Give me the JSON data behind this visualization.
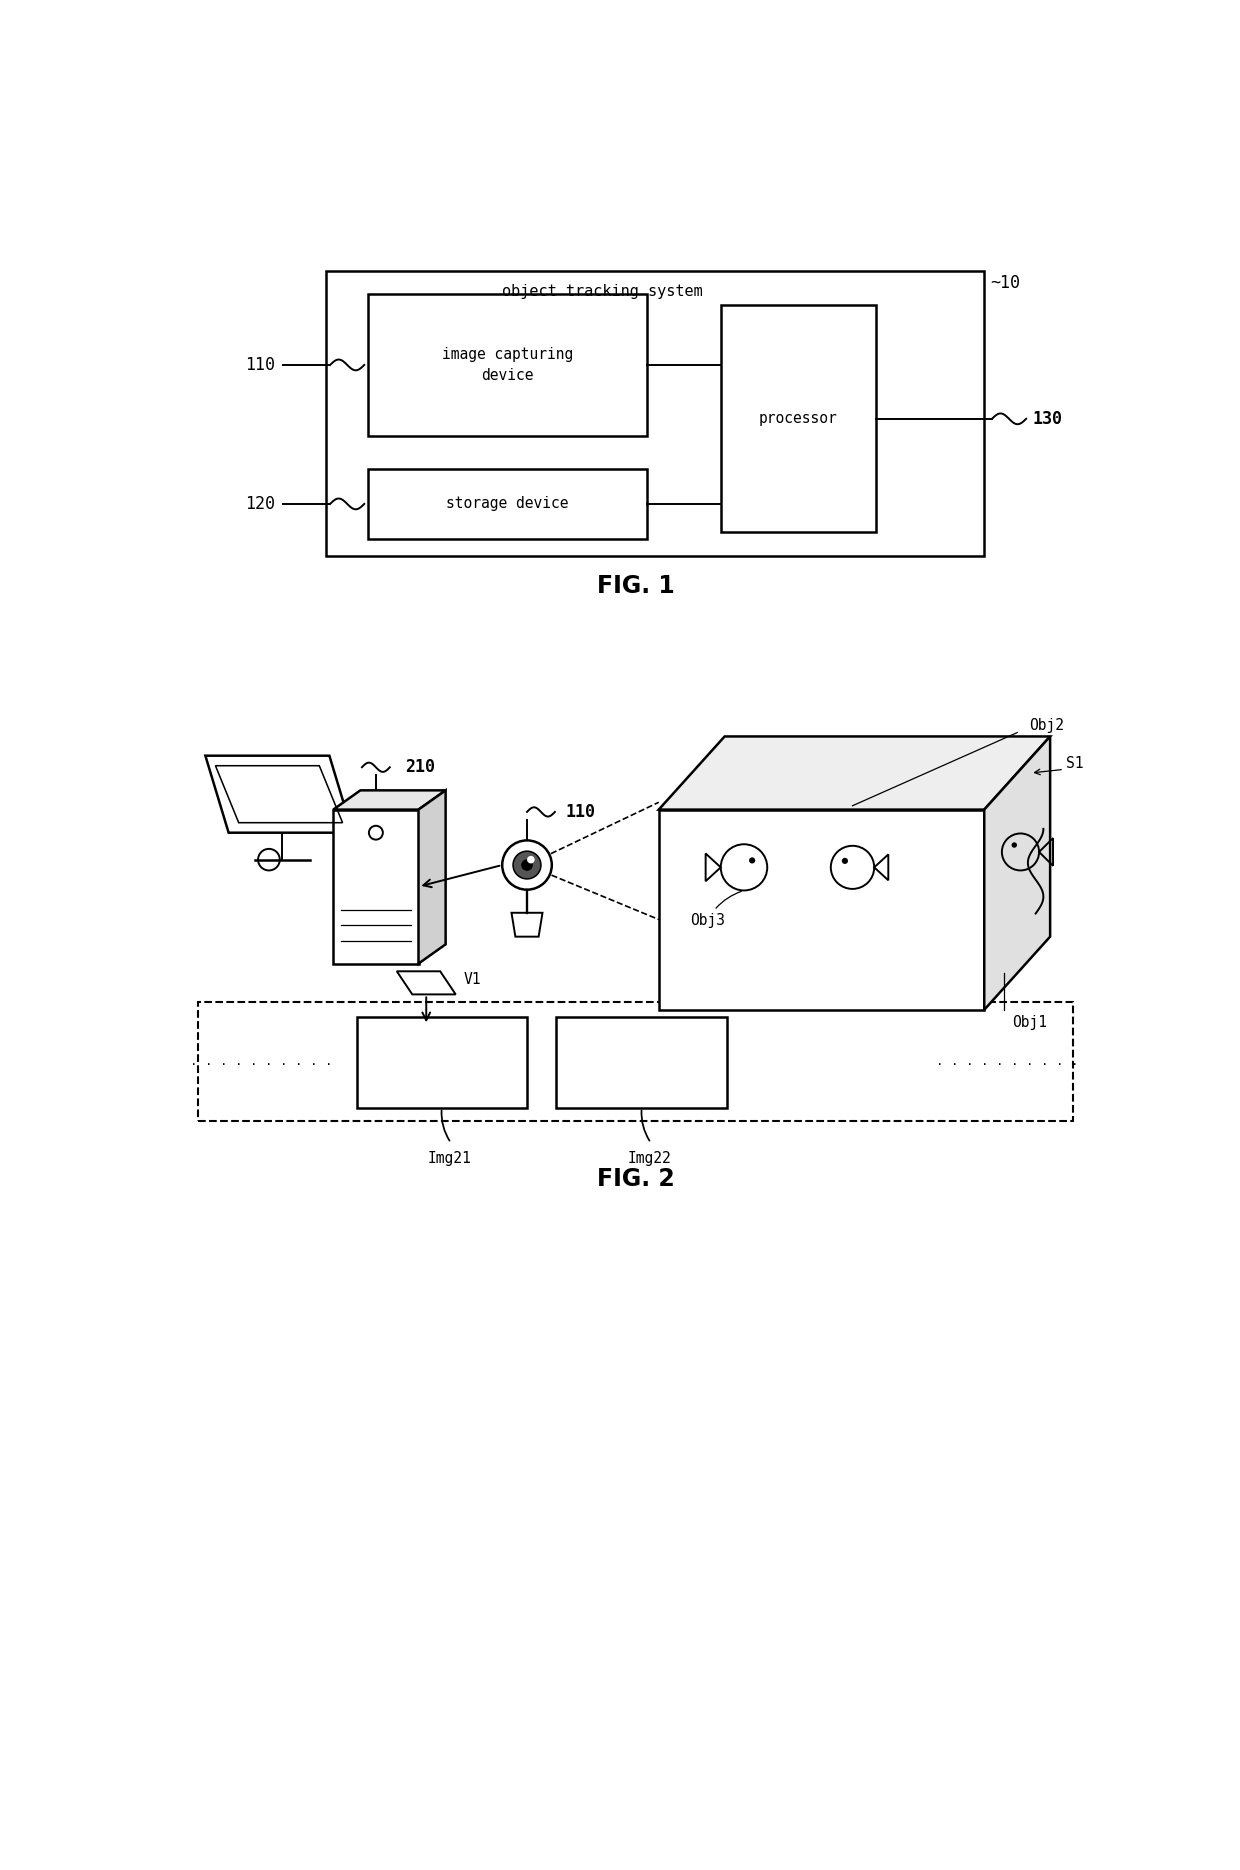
{
  "fig_width": 12.4,
  "fig_height": 18.7,
  "bg_color": "#ffffff",
  "fig1_title": "FIG. 1",
  "fig2_title": "FIG. 2",
  "label_10": "10",
  "label_110": "110",
  "label_120": "120",
  "label_130": "130",
  "label_210": "210",
  "label_110b": "110",
  "label_obj1": "Obj1",
  "label_obj2": "Obj2",
  "label_obj3": "Obj3",
  "label_s1": "S1",
  "label_v1": "V1",
  "label_img21": "Img21",
  "label_img22": "Img22",
  "text_ots": "object tracking system",
  "text_icd": "image capturing\ndevice",
  "text_storage": "storage device",
  "text_processor": "processor"
}
